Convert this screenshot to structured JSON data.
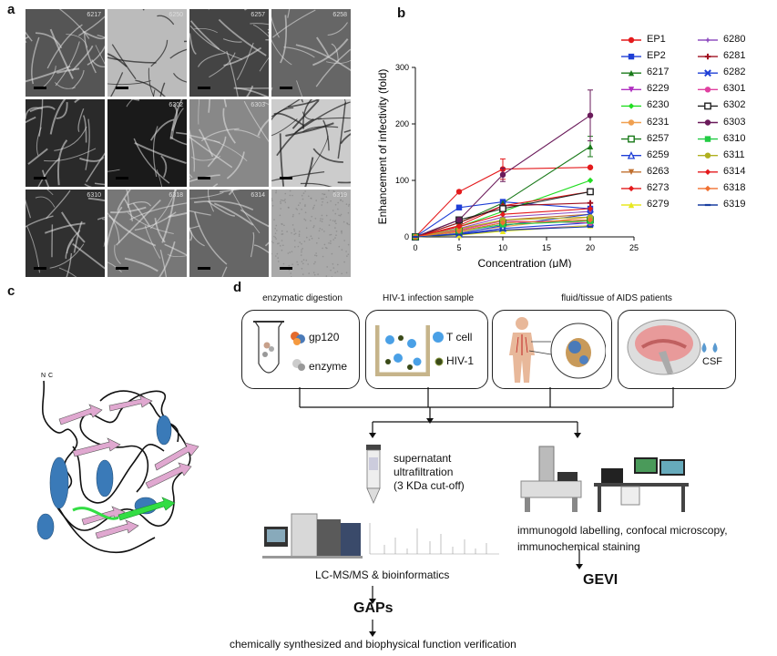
{
  "panels": {
    "a_label": "a",
    "b_label": "b",
    "c_label": "c",
    "d_label": "d"
  },
  "em_grid": {
    "tiles": [
      "6217",
      "6250",
      "6257",
      "6258",
      "",
      "6302",
      "6303",
      "",
      "6310",
      "6318",
      "6314",
      "6319"
    ]
  },
  "chart_data": {
    "type": "line",
    "xlabel": "Concentration (μM)",
    "ylabel": "Enhancement of infectivity (fold)",
    "xlim": [
      0,
      25
    ],
    "ylim": [
      0,
      300
    ],
    "xticks": [
      0,
      5,
      10,
      15,
      20,
      25
    ],
    "yticks": [
      0,
      100,
      200,
      300
    ],
    "x": [
      0,
      5,
      10,
      20
    ],
    "series": [
      {
        "name": "EP1",
        "color": "#e41a1c",
        "marker": "circle",
        "values": [
          0,
          80,
          120,
          123
        ]
      },
      {
        "name": "EP2",
        "color": "#1f3fd6",
        "marker": "square",
        "values": [
          0,
          52,
          62,
          50
        ]
      },
      {
        "name": "6217",
        "color": "#1a7a1a",
        "marker": "triangle",
        "values": [
          0,
          25,
          60,
          160
        ]
      },
      {
        "name": "6229",
        "color": "#b030c0",
        "marker": "tri-down",
        "values": [
          0,
          5,
          12,
          20
        ]
      },
      {
        "name": "6230",
        "color": "#22dd22",
        "marker": "diamond",
        "values": [
          0,
          18,
          45,
          100
        ]
      },
      {
        "name": "6231",
        "color": "#f0a050",
        "marker": "circle",
        "values": [
          0,
          8,
          18,
          35
        ]
      },
      {
        "name": "6257",
        "color": "#1a7a1a",
        "marker": "square-open",
        "values": [
          0,
          10,
          25,
          30
        ]
      },
      {
        "name": "6259",
        "color": "#1f3fd6",
        "marker": "triangle-open",
        "values": [
          0,
          5,
          15,
          25
        ]
      },
      {
        "name": "6263",
        "color": "#c07030",
        "marker": "tri-down",
        "values": [
          0,
          12,
          30,
          40
        ]
      },
      {
        "name": "6273",
        "color": "#e41a1c",
        "marker": "diamond",
        "values": [
          0,
          20,
          55,
          80
        ]
      },
      {
        "name": "6279",
        "color": "#e8e820",
        "marker": "triangle",
        "values": [
          0,
          3,
          10,
          20
        ]
      },
      {
        "name": "6280",
        "color": "#9050c0",
        "marker": "star",
        "values": [
          0,
          15,
          35,
          45
        ]
      },
      {
        "name": "6281",
        "color": "#a01020",
        "marker": "plus",
        "values": [
          0,
          25,
          55,
          60
        ]
      },
      {
        "name": "6282",
        "color": "#1f3fd6",
        "marker": "x",
        "values": [
          0,
          6,
          20,
          40
        ]
      },
      {
        "name": "6301",
        "color": "#e040a0",
        "marker": "circle",
        "values": [
          0,
          12,
          28,
          25
        ]
      },
      {
        "name": "6302",
        "color": "#222222",
        "marker": "square-open",
        "values": [
          0,
          30,
          50,
          80
        ]
      },
      {
        "name": "6303",
        "color": "#6a1a5a",
        "marker": "circle",
        "values": [
          0,
          30,
          110,
          215
        ]
      },
      {
        "name": "6310",
        "color": "#22cc44",
        "marker": "square",
        "values": [
          0,
          10,
          22,
          28
        ]
      },
      {
        "name": "6311",
        "color": "#b0b020",
        "marker": "circle",
        "values": [
          0,
          14,
          30,
          35
        ]
      },
      {
        "name": "6314",
        "color": "#e41a1c",
        "marker": "diamond",
        "values": [
          0,
          18,
          40,
          50
        ]
      },
      {
        "name": "6318",
        "color": "#f07030",
        "marker": "diamond",
        "values": [
          0,
          10,
          25,
          30
        ]
      },
      {
        "name": "6319",
        "color": "#1a3fa0",
        "marker": "dash",
        "values": [
          0,
          4,
          12,
          18
        ]
      }
    ]
  },
  "protein": {
    "n_label": "N",
    "c_label": "C",
    "helix_color": "#3a7ab8",
    "sheet_color": "#e0a8d0",
    "highlight_color": "#33dd44"
  },
  "workflow": {
    "box1_title": "enzymatic digestion",
    "box2_title": "HIV-1 infection  sample",
    "box3_title": "fluid/tissue of AIDS patients",
    "gp120": "gp120",
    "enzyme": "enzyme",
    "t_cell": "T cell",
    "hiv": "HIV-1",
    "csf": "CSF",
    "step_supernatant": "supernatant",
    "step_ultra": "ultrafiltration",
    "step_cutoff": "(3 KDa cut-off)",
    "imaging": "immunogold labelling, confocal microscopy,",
    "imaging2": "immunochemical staining",
    "lcms": "LC-MS/MS & bioinformatics",
    "gaps": "GAPs",
    "gevi": "GEVI",
    "verification": "chemically synthesized and biophysical function verification"
  }
}
